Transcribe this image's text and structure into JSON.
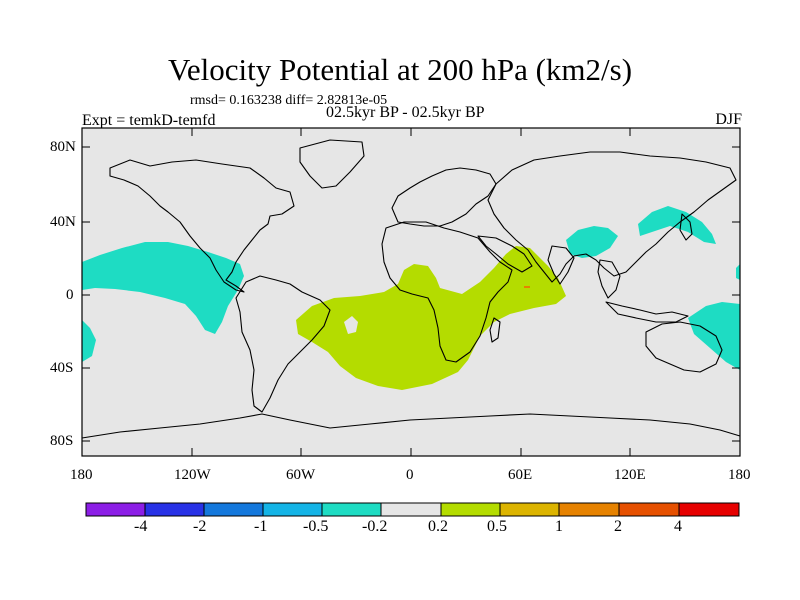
{
  "title": "Velocity Potential at 200 hPa (km2/s)",
  "subtitle": "rmsd= 0.163238 diff= 2.82813e-05",
  "experiment": "Expt = temkD-temfd",
  "period": "02.5kyr BP - 02.5kyr BP",
  "season": "DJF",
  "y_ticks": [
    "80N",
    "40N",
    "0",
    "40S",
    "80S"
  ],
  "x_ticks": [
    "180",
    "120W",
    "60W",
    "0",
    "60E",
    "120E",
    "180"
  ],
  "colorbar": {
    "labels": [
      "-4",
      "-2",
      "-1",
      "-0.5",
      "-0.2",
      "0.2",
      "0.5",
      "1",
      "2",
      "4"
    ],
    "colors": [
      "#8c1ee6",
      "#2832e6",
      "#1478dc",
      "#14b4e6",
      "#1edcc3",
      "#e6e6e6",
      "#b4dc00",
      "#dcb400",
      "#e68200",
      "#e65000",
      "#e60000"
    ]
  },
  "colors": {
    "background": "#e6e6e6",
    "negative_anomaly": "#1edcc3",
    "positive_anomaly": "#b4dc00",
    "coastline": "#000000"
  }
}
